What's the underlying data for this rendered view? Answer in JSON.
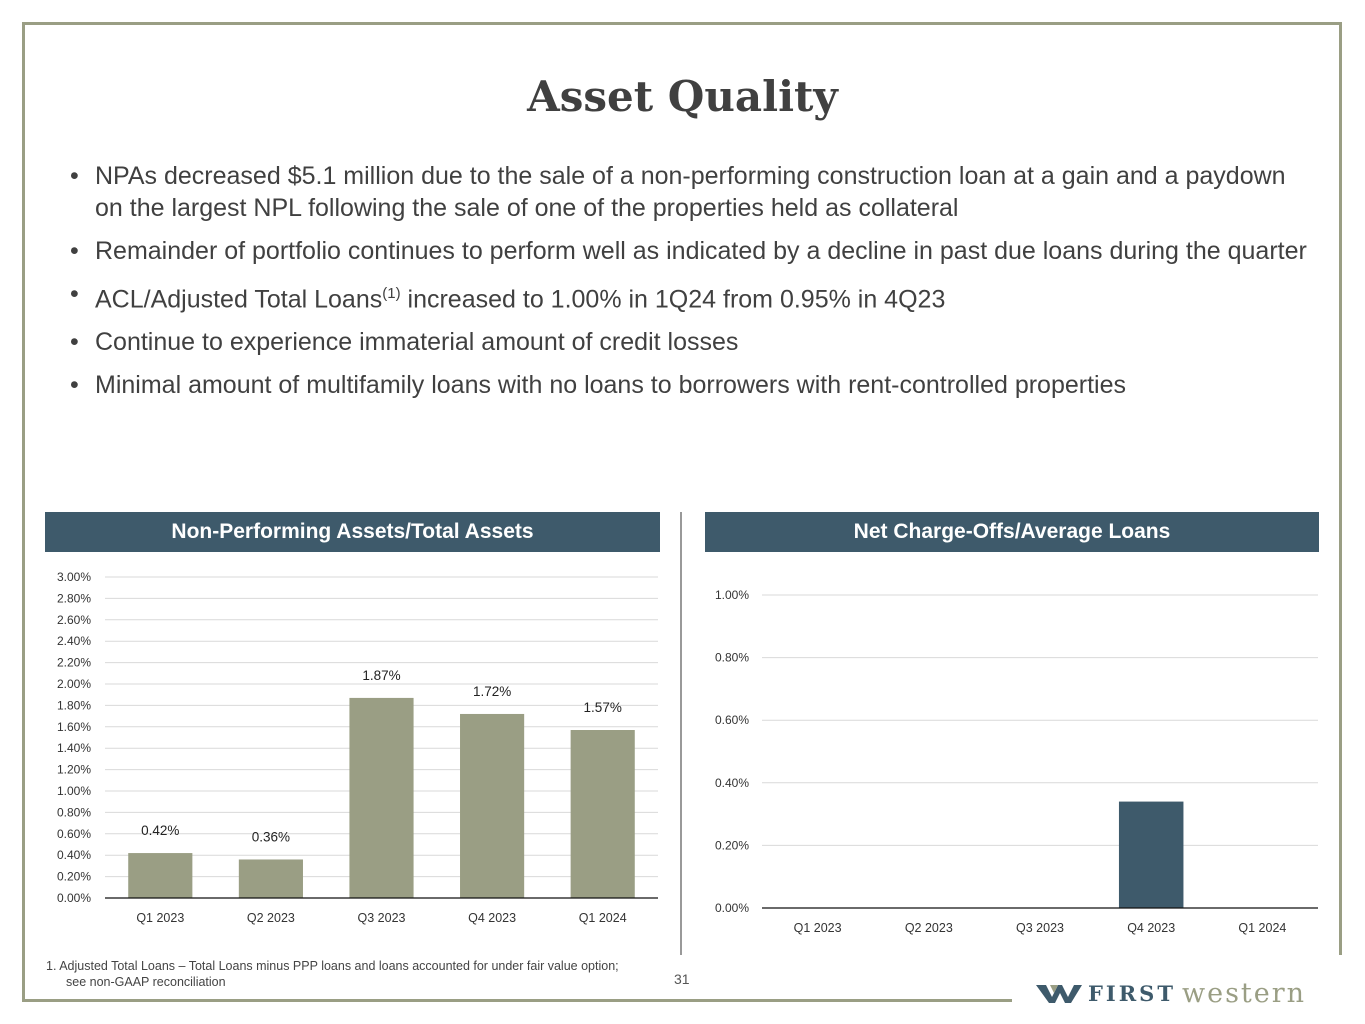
{
  "title": "Asset Quality",
  "bullets": [
    "NPAs decreased $5.1 million due to the sale of a non-performing construction loan at a gain and a paydown on the largest NPL following the sale of one of the properties held as collateral",
    "Remainder of portfolio continues to perform well as indicated by a decline in past due loans during the quarter",
    {
      "pre": "ACL/Adjusted Total Loans",
      "sup": "(1)",
      "post": " increased to 1.00% in 1Q24 from 0.95% in 4Q23"
    },
    "Continue to experience immaterial amount of credit losses",
    "Minimal amount of multifamily loans with no loans to borrowers with rent-controlled properties"
  ],
  "footnote": {
    "line1": "1.   Adjusted Total Loans –  Total Loans minus PPP loans and loans accounted for under fair value option;",
    "line2": "see non-GAAP reconciliation"
  },
  "page_number": "31",
  "logo": {
    "first": "FIRST",
    "western": "western"
  },
  "colors": {
    "frame": "#9a9e84",
    "header": "#3e5a6b",
    "npa_bar": "#9a9e84",
    "nco_bar": "#3e5a6b"
  },
  "chart_data": [
    {
      "type": "bar",
      "title": "Non-Performing Assets/Total Assets",
      "categories": [
        "Q1 2023",
        "Q2 2023",
        "Q3 2023",
        "Q4 2023",
        "Q1 2024"
      ],
      "values": [
        0.42,
        0.36,
        1.87,
        1.72,
        1.57
      ],
      "data_labels": [
        "0.42%",
        "0.36%",
        "1.87%",
        "1.72%",
        "1.57%"
      ],
      "ylim": [
        0,
        3.0
      ],
      "yticks": [
        "0.00%",
        "0.20%",
        "0.40%",
        "0.60%",
        "0.80%",
        "1.00%",
        "1.20%",
        "1.40%",
        "1.60%",
        "1.80%",
        "2.00%",
        "2.20%",
        "2.40%",
        "2.60%",
        "2.80%",
        "3.00%"
      ],
      "grid": true
    },
    {
      "type": "bar",
      "title": "Net Charge-Offs/Average Loans",
      "categories": [
        "Q1 2023",
        "Q2 2023",
        "Q3 2023",
        "Q4 2023",
        "Q1 2024"
      ],
      "values": [
        0,
        0,
        0,
        0.34,
        0
      ],
      "ylim": [
        0,
        1.0
      ],
      "yticks": [
        "0.00%",
        "0.20%",
        "0.40%",
        "0.60%",
        "0.80%",
        "1.00%"
      ],
      "grid": true
    }
  ]
}
